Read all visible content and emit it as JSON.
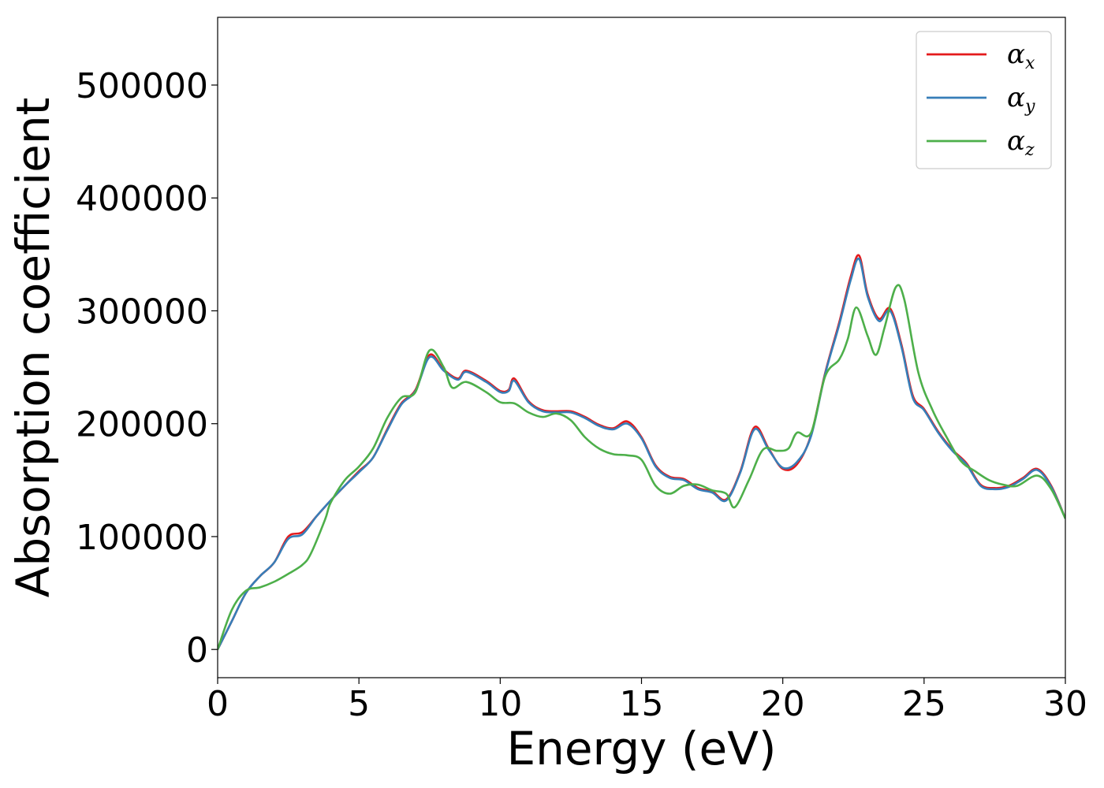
{
  "chart_data": {
    "type": "line",
    "xlabel": "Energy (eV)",
    "ylabel": "Absorption coefficient",
    "xlim": [
      0,
      30
    ],
    "ylim": [
      -25000,
      560000
    ],
    "xticks": [
      0,
      5,
      10,
      15,
      20,
      25,
      30
    ],
    "yticks": [
      0,
      100000,
      200000,
      300000,
      400000,
      500000
    ],
    "grid": false,
    "legend_position": "top-right",
    "series": [
      {
        "name": "αx",
        "legend_symbol": "α",
        "legend_sub": "x",
        "color": "#e41a1c",
        "points": [
          [
            0,
            0
          ],
          [
            0.5,
            25000
          ],
          [
            1,
            50000
          ],
          [
            1.5,
            65000
          ],
          [
            2,
            77000
          ],
          [
            2.5,
            100000
          ],
          [
            3,
            104000
          ],
          [
            3.5,
            118000
          ],
          [
            4,
            132000
          ],
          [
            4.5,
            145000
          ],
          [
            5,
            158000
          ],
          [
            5.5,
            170000
          ],
          [
            6,
            195000
          ],
          [
            6.5,
            218000
          ],
          [
            7,
            230000
          ],
          [
            7.5,
            261000
          ],
          [
            8,
            248000
          ],
          [
            8.5,
            240000
          ],
          [
            8.8,
            247000
          ],
          [
            9.5,
            238000
          ],
          [
            10,
            229000
          ],
          [
            10.3,
            230000
          ],
          [
            10.5,
            240000
          ],
          [
            11,
            220000
          ],
          [
            11.5,
            212000
          ],
          [
            12,
            211000
          ],
          [
            12.5,
            211000
          ],
          [
            13,
            206000
          ],
          [
            13.5,
            199000
          ],
          [
            14,
            196000
          ],
          [
            14.5,
            202000
          ],
          [
            15,
            188000
          ],
          [
            15.5,
            163000
          ],
          [
            16,
            153000
          ],
          [
            16.5,
            151000
          ],
          [
            17,
            143000
          ],
          [
            17.5,
            140000
          ],
          [
            18,
            133000
          ],
          [
            18.5,
            158000
          ],
          [
            19,
            197000
          ],
          [
            19.5,
            178000
          ],
          [
            20,
            160000
          ],
          [
            20.5,
            164000
          ],
          [
            21,
            190000
          ],
          [
            21.5,
            245000
          ],
          [
            22,
            290000
          ],
          [
            22.4,
            330000
          ],
          [
            22.7,
            349000
          ],
          [
            23,
            315000
          ],
          [
            23.4,
            293000
          ],
          [
            23.8,
            302000
          ],
          [
            24.2,
            270000
          ],
          [
            24.6,
            225000
          ],
          [
            25,
            213000
          ],
          [
            25.5,
            193000
          ],
          [
            26,
            177000
          ],
          [
            26.5,
            165000
          ],
          [
            27,
            146000
          ],
          [
            27.5,
            143000
          ],
          [
            28,
            145000
          ],
          [
            28.5,
            152000
          ],
          [
            29,
            160000
          ],
          [
            29.5,
            145000
          ],
          [
            30,
            116000
          ]
        ]
      },
      {
        "name": "αy",
        "legend_symbol": "α",
        "legend_sub": "y",
        "color": "#377eb8",
        "points": [
          [
            0,
            0
          ],
          [
            0.5,
            25000
          ],
          [
            1,
            50000
          ],
          [
            1.5,
            65000
          ],
          [
            2,
            77000
          ],
          [
            2.5,
            98000
          ],
          [
            3,
            102000
          ],
          [
            3.5,
            118000
          ],
          [
            4,
            132000
          ],
          [
            4.5,
            145000
          ],
          [
            5,
            157000
          ],
          [
            5.5,
            170000
          ],
          [
            6,
            194000
          ],
          [
            6.5,
            217000
          ],
          [
            7,
            229000
          ],
          [
            7.5,
            259000
          ],
          [
            8,
            247000
          ],
          [
            8.5,
            239000
          ],
          [
            8.8,
            246000
          ],
          [
            9.5,
            237000
          ],
          [
            10,
            228000
          ],
          [
            10.3,
            229000
          ],
          [
            10.5,
            238000
          ],
          [
            11,
            219000
          ],
          [
            11.5,
            211000
          ],
          [
            12,
            210000
          ],
          [
            12.5,
            210000
          ],
          [
            13,
            205000
          ],
          [
            13.5,
            198000
          ],
          [
            14,
            195000
          ],
          [
            14.5,
            200000
          ],
          [
            15,
            187000
          ],
          [
            15.5,
            162000
          ],
          [
            16,
            152000
          ],
          [
            16.5,
            150000
          ],
          [
            17,
            142000
          ],
          [
            17.5,
            139000
          ],
          [
            18,
            132000
          ],
          [
            18.5,
            157000
          ],
          [
            19,
            195000
          ],
          [
            19.5,
            177000
          ],
          [
            20,
            161000
          ],
          [
            20.5,
            166000
          ],
          [
            21,
            189000
          ],
          [
            21.5,
            244000
          ],
          [
            22,
            288000
          ],
          [
            22.4,
            327000
          ],
          [
            22.7,
            346000
          ],
          [
            23,
            313000
          ],
          [
            23.4,
            291000
          ],
          [
            23.8,
            300000
          ],
          [
            24.2,
            268000
          ],
          [
            24.6,
            223000
          ],
          [
            25,
            212000
          ],
          [
            25.5,
            192000
          ],
          [
            26,
            176000
          ],
          [
            26.5,
            164000
          ],
          [
            27,
            145000
          ],
          [
            27.5,
            142000
          ],
          [
            28,
            144000
          ],
          [
            28.5,
            151000
          ],
          [
            29,
            159000
          ],
          [
            29.5,
            144000
          ],
          [
            30,
            116000
          ]
        ]
      },
      {
        "name": "αz",
        "legend_symbol": "α",
        "legend_sub": "z",
        "color": "#4daf4a",
        "points": [
          [
            0,
            0
          ],
          [
            0.5,
            35000
          ],
          [
            1,
            52000
          ],
          [
            1.5,
            55000
          ],
          [
            2,
            60000
          ],
          [
            2.5,
            67000
          ],
          [
            3,
            75000
          ],
          [
            3.3,
            85000
          ],
          [
            3.8,
            115000
          ],
          [
            4,
            130000
          ],
          [
            4.5,
            150000
          ],
          [
            5,
            162000
          ],
          [
            5.5,
            178000
          ],
          [
            6,
            205000
          ],
          [
            6.5,
            223000
          ],
          [
            7,
            228000
          ],
          [
            7.5,
            265000
          ],
          [
            8,
            250000
          ],
          [
            8.3,
            232000
          ],
          [
            8.8,
            237000
          ],
          [
            9.5,
            228000
          ],
          [
            10,
            219000
          ],
          [
            10.5,
            218000
          ],
          [
            11,
            210000
          ],
          [
            11.5,
            206000
          ],
          [
            12,
            209000
          ],
          [
            12.5,
            203000
          ],
          [
            13,
            188000
          ],
          [
            13.5,
            178000
          ],
          [
            14,
            173000
          ],
          [
            14.5,
            172000
          ],
          [
            15,
            168000
          ],
          [
            15.5,
            145000
          ],
          [
            16,
            138000
          ],
          [
            16.5,
            145000
          ],
          [
            17,
            146000
          ],
          [
            17.5,
            141000
          ],
          [
            18,
            138000
          ],
          [
            18.3,
            126000
          ],
          [
            18.8,
            150000
          ],
          [
            19.3,
            177000
          ],
          [
            19.8,
            176000
          ],
          [
            20.2,
            178000
          ],
          [
            20.5,
            192000
          ],
          [
            21,
            192000
          ],
          [
            21.5,
            242000
          ],
          [
            22,
            257000
          ],
          [
            22.3,
            275000
          ],
          [
            22.6,
            303000
          ],
          [
            23,
            278000
          ],
          [
            23.3,
            261000
          ],
          [
            23.6,
            285000
          ],
          [
            24,
            321000
          ],
          [
            24.3,
            310000
          ],
          [
            24.8,
            245000
          ],
          [
            25.3,
            212000
          ],
          [
            25.8,
            188000
          ],
          [
            26.3,
            167000
          ],
          [
            26.8,
            158000
          ],
          [
            27.3,
            150000
          ],
          [
            27.8,
            146000
          ],
          [
            28.3,
            145000
          ],
          [
            29,
            154000
          ],
          [
            29.5,
            142000
          ],
          [
            30,
            116000
          ]
        ]
      }
    ]
  }
}
